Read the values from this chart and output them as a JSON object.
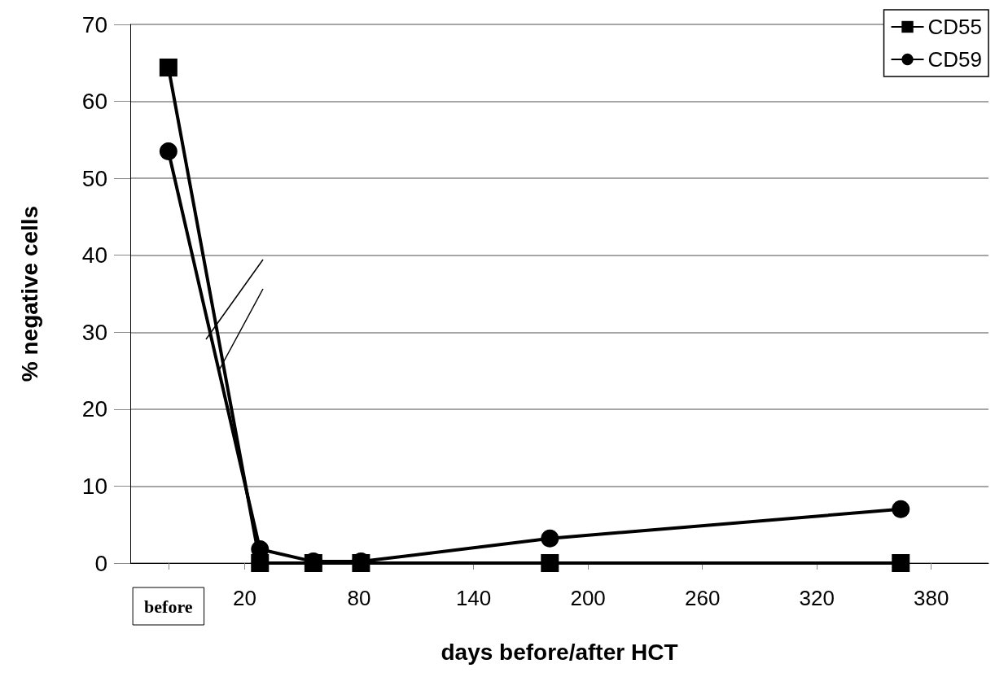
{
  "chart_data": {
    "type": "line",
    "xlabel": "days before/after HCT",
    "ylabel": "% negative cells",
    "xlim": [
      -40,
      410
    ],
    "xticks": [
      {
        "value": -20,
        "label": "before"
      },
      20,
      80,
      140,
      200,
      260,
      320,
      380
    ],
    "ylim": [
      0,
      70
    ],
    "yticks": [
      0,
      10,
      20,
      30,
      40,
      50,
      60,
      70
    ],
    "grid": "y",
    "legend": "top right",
    "line_style": "solid",
    "series": [
      {
        "name": "CD55",
        "color": "#000000",
        "marker": "square",
        "x": [
          -20,
          28,
          56,
          81,
          180,
          364
        ],
        "values": [
          64.4,
          0,
          0,
          0,
          0,
          0
        ]
      },
      {
        "name": "CD59",
        "color": "#000000",
        "marker": "circle",
        "x": [
          -20,
          28,
          56,
          81,
          180,
          364
        ],
        "values": [
          53.5,
          1.8,
          0.2,
          0.2,
          3.2,
          7
        ]
      }
    ]
  }
}
